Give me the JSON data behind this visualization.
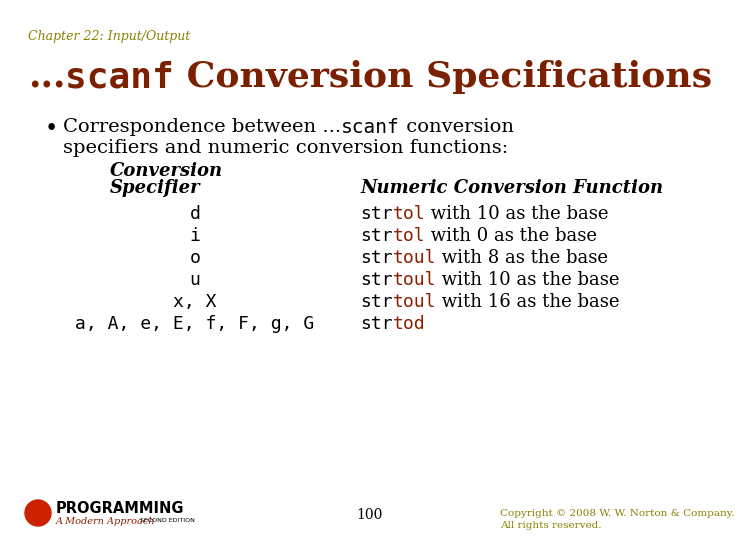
{
  "bg_color": "#ffffff",
  "chapter_text": "Chapter 22: Input/Output",
  "chapter_color": "#8B8000",
  "title_color": "#7B2000",
  "text_color": "#000000",
  "mono_str_color": "#000000",
  "mono_func_color": "#8B2000",
  "footer_copy_color": "#8B8000",
  "title_dots": "...",
  "title_code": "scanf",
  "title_rest": " Conversion Specifications",
  "bullet_pre": "Correspondence between ...",
  "bullet_code": "scanf",
  "bullet_post": " conversion",
  "bullet_line2": "specifiers and numeric conversion functions:",
  "col1_hdr1": "Conversion",
  "col1_hdr2": "Specifier",
  "col2_hdr": "Numeric Conversion Function",
  "rows": [
    {
      "spec": "d",
      "func_black": "str",
      "func_red": "tol",
      "suffix": " with 10 as the base"
    },
    {
      "spec": "i",
      "func_black": "str",
      "func_red": "tol",
      "suffix": " with 0 as the base"
    },
    {
      "spec": "o",
      "func_black": "str",
      "func_red": "toul",
      "suffix": " with 8 as the base"
    },
    {
      "spec": "u",
      "func_black": "str",
      "func_red": "toul",
      "suffix": " with 10 as the base"
    },
    {
      "spec": "x, X",
      "func_black": "str",
      "func_red": "toul",
      "suffix": " with 16 as the base"
    },
    {
      "spec": "a, A, e, E, f, F, g, G",
      "func_black": "str",
      "func_red": "tod",
      "suffix": ""
    }
  ],
  "footer_page": "100",
  "footer_copy1": "Copyright © 2008 W. W. Norton & Company.",
  "footer_copy2": "All rights reserved."
}
